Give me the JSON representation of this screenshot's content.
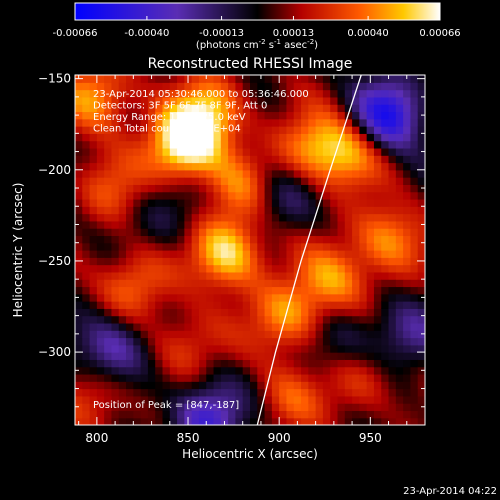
{
  "colorbar": {
    "ticks": [
      -0.00066,
      -0.0004,
      -0.00013,
      0.00013,
      0.0004,
      0.00066
    ],
    "tick_labels": [
      "-0.00066",
      "-0.00040",
      "-0.00013",
      "0.00013",
      "0.00040",
      "0.00066"
    ],
    "unit_label_parts": [
      "(photons cm",
      "-2",
      " s",
      "-1",
      " asec",
      "-2",
      ")"
    ],
    "stops": [
      {
        "offset": 0.0,
        "color": "#0000ff"
      },
      {
        "offset": 0.28,
        "color": "#5a2db4"
      },
      {
        "offset": 0.5,
        "color": "#000000"
      },
      {
        "offset": 0.62,
        "color": "#b40000"
      },
      {
        "offset": 0.78,
        "color": "#ff5a00"
      },
      {
        "offset": 0.9,
        "color": "#ffc800"
      },
      {
        "offset": 1.0,
        "color": "#ffffff"
      }
    ]
  },
  "chart_data": {
    "type": "heatmap",
    "title": "Reconstructed RHESSI Image",
    "xlabel": "Heliocentric X (arcsec)",
    "ylabel": "Heliocentric Y (arcsec)",
    "xlim": [
      788,
      980
    ],
    "ylim": [
      -340,
      -148
    ],
    "xticks": [
      800,
      850,
      900,
      950
    ],
    "yticks": [
      -150,
      -200,
      -250,
      -300
    ],
    "info_lines": [
      "23-Apr-2014 05:30:46.000 to 05:36:46.000",
      "Detectors: 3F 5F 6F 7F 8F 9F, Att 0",
      "Energy Range: 12.0 - 25.0 keV",
      "Clean    Total counts: 1.32E+04"
    ],
    "peak_label": "Position of Peak = [847,-187]",
    "peak": [
      847,
      -187
    ],
    "limb_curve": [
      [
        945,
        -148
      ],
      [
        928,
        -200
      ],
      [
        912,
        -250
      ],
      [
        898,
        -300
      ],
      [
        888,
        -340
      ]
    ],
    "blobs": [
      {
        "x": 847,
        "y": -187,
        "v": 1.0
      },
      {
        "x": 800,
        "y": -160,
        "v": 0.65
      },
      {
        "x": 862,
        "y": -168,
        "v": 0.7
      },
      {
        "x": 872,
        "y": -245,
        "v": 0.85
      },
      {
        "x": 905,
        "y": -280,
        "v": 0.6
      },
      {
        "x": 918,
        "y": -188,
        "v": 0.55
      },
      {
        "x": 938,
        "y": -190,
        "v": 0.6
      },
      {
        "x": 930,
        "y": -260,
        "v": 0.55
      },
      {
        "x": 960,
        "y": -238,
        "v": 0.6
      },
      {
        "x": 820,
        "y": -262,
        "v": 0.5
      },
      {
        "x": 808,
        "y": -210,
        "v": 0.35
      },
      {
        "x": 850,
        "y": -295,
        "v": 0.4
      },
      {
        "x": 880,
        "y": -210,
        "v": 0.45
      },
      {
        "x": 945,
        "y": -315,
        "v": 0.4
      },
      {
        "x": 800,
        "y": -325,
        "v": 0.4
      },
      {
        "x": 905,
        "y": -325,
        "v": 0.35
      },
      {
        "x": 960,
        "y": -170,
        "v": -0.9
      },
      {
        "x": 808,
        "y": -298,
        "v": -0.6
      },
      {
        "x": 860,
        "y": -335,
        "v": -0.7
      },
      {
        "x": 900,
        "y": -215,
        "v": -0.35
      },
      {
        "x": 840,
        "y": -225,
        "v": -0.25
      },
      {
        "x": 935,
        "y": -295,
        "v": -0.3
      },
      {
        "x": 968,
        "y": -290,
        "v": -0.4
      }
    ]
  },
  "footer": {
    "timestamp": "23-Apr-2014 04:22"
  }
}
